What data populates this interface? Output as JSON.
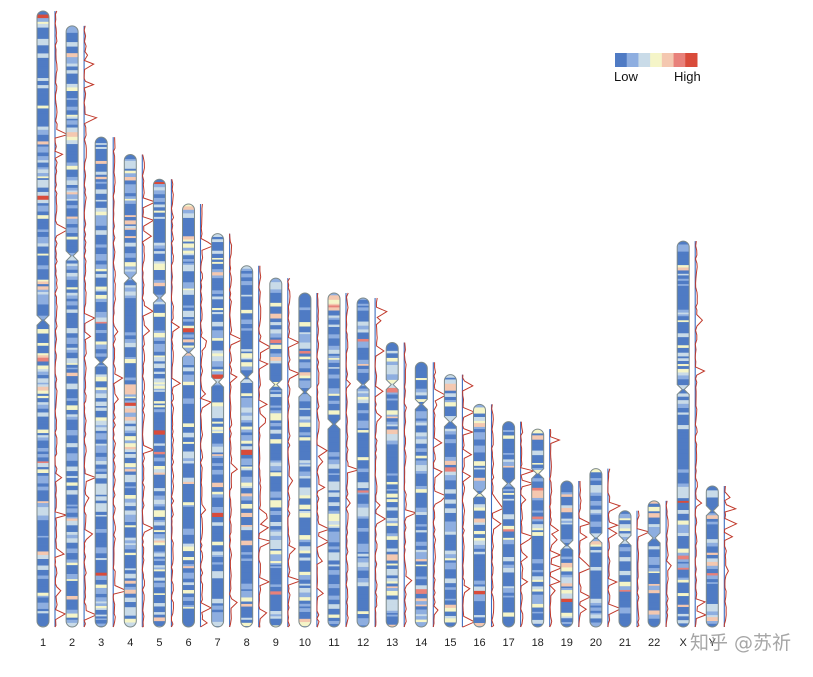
{
  "chart_data": {
    "type": "heatmap",
    "title": "",
    "xlabel": "",
    "ylabel": "",
    "chromosomes": [
      {
        "name": "1",
        "length": 249,
        "centromere": 125
      },
      {
        "name": "2",
        "length": 243,
        "centromere": 93
      },
      {
        "name": "3",
        "length": 198,
        "centromere": 91
      },
      {
        "name": "4",
        "length": 191,
        "centromere": 50
      },
      {
        "name": "5",
        "length": 181,
        "centromere": 48
      },
      {
        "name": "6",
        "length": 171,
        "centromere": 60
      },
      {
        "name": "7",
        "length": 159,
        "centromere": 60
      },
      {
        "name": "8",
        "length": 146,
        "centromere": 45
      },
      {
        "name": "9",
        "length": 141,
        "centromere": 43
      },
      {
        "name": "10",
        "length": 135,
        "centromere": 40
      },
      {
        "name": "11",
        "length": 135,
        "centromere": 53
      },
      {
        "name": "12",
        "length": 133,
        "centromere": 35
      },
      {
        "name": "13",
        "length": 115,
        "centromere": 17
      },
      {
        "name": "14",
        "length": 107,
        "centromere": 17
      },
      {
        "name": "15",
        "length": 102,
        "centromere": 19
      },
      {
        "name": "16",
        "length": 90,
        "centromere": 36
      },
      {
        "name": "17",
        "length": 83,
        "centromere": 25
      },
      {
        "name": "18",
        "length": 80,
        "centromere": 18
      },
      {
        "name": "19",
        "length": 59,
        "centromere": 26
      },
      {
        "name": "20",
        "length": 64,
        "centromere": 28
      },
      {
        "name": "21",
        "length": 47,
        "centromere": 12
      },
      {
        "name": "22",
        "length": 51,
        "centromere": 15
      },
      {
        "name": "X",
        "length": 156,
        "centromere": 60
      },
      {
        "name": "Y",
        "length": 57,
        "centromere": 10
      }
    ],
    "legend": {
      "low_label": "Low",
      "high_label": "High",
      "colors": [
        "#4f7bc4",
        "#8eaee0",
        "#c9dbe8",
        "#f5f5c8",
        "#f4c8b0",
        "#e8817a",
        "#d94b3a"
      ],
      "placement": "top-right"
    },
    "density_line_color": "#c0392b",
    "axis_line_color": "#3f6fc0",
    "outline_color": "#7d8a8a"
  },
  "watermark": "知乎 @苏祈"
}
